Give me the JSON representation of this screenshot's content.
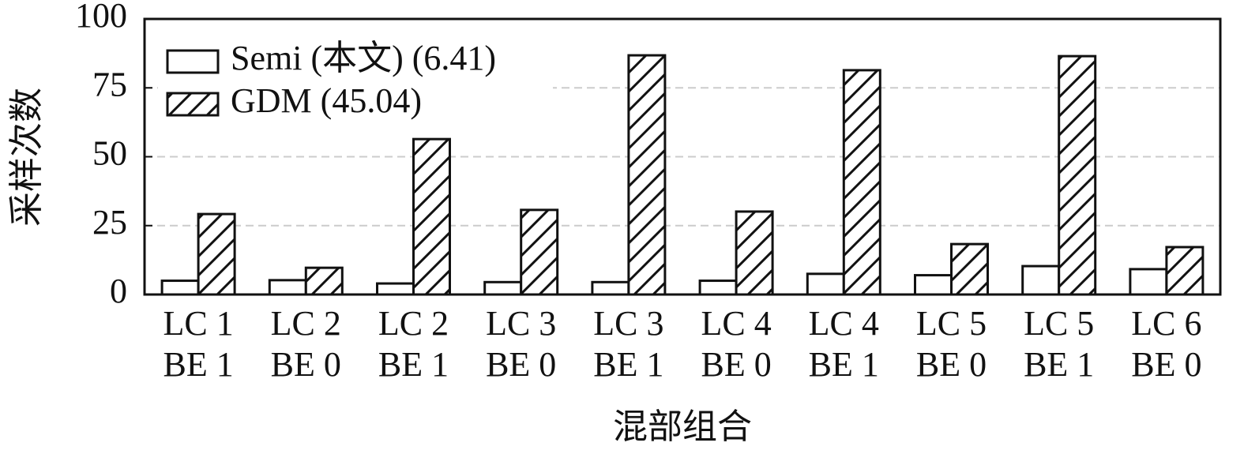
{
  "chart_data": {
    "type": "bar",
    "categories": [
      [
        "LC 1",
        "BE 1"
      ],
      [
        "LC 2",
        "BE 0"
      ],
      [
        "LC 2",
        "BE 1"
      ],
      [
        "LC 3",
        "BE 0"
      ],
      [
        "LC 3",
        "BE 1"
      ],
      [
        "LC 4",
        "BE 0"
      ],
      [
        "LC 4",
        "BE 1"
      ],
      [
        "LC 5",
        "BE 0"
      ],
      [
        "LC 5",
        "BE 1"
      ],
      [
        "LC 6",
        "BE 0"
      ]
    ],
    "series": [
      {
        "name": "Semi (本文) (6.41)",
        "color": "#ffffff",
        "values": [
          5,
          5.2,
          4,
          4.5,
          4.5,
          5,
          7.5,
          7,
          10.3,
          9.2
        ]
      },
      {
        "name": "GDM (45.04)",
        "color": "#ffffff",
        "hatch": "diagonal",
        "values": [
          29.2,
          9.7,
          56.4,
          30.7,
          86.8,
          30.1,
          81.4,
          18.3,
          86.5,
          17.2
        ]
      }
    ],
    "ylim": [
      0,
      100
    ],
    "yticks": [
      0,
      25,
      50,
      75,
      100
    ],
    "grid": true,
    "xlabel": "混部组合",
    "ylabel": "采样次数",
    "legend": "upper-left"
  }
}
